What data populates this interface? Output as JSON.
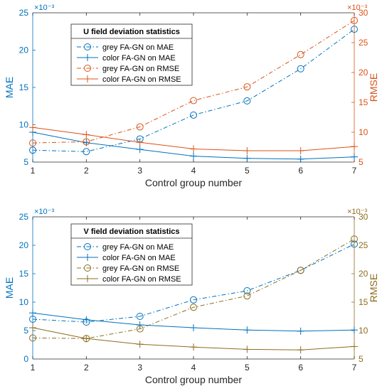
{
  "chart_data": [
    {
      "type": "line",
      "title": "",
      "legend_title": "U field deviation statistics",
      "xlabel": "Control group number",
      "ylabel_left": "MAE",
      "ylabel_right": "RMSE",
      "left_exponent": "×10⁻³",
      "right_exponent": "×10⁻³",
      "x": [
        1,
        2,
        3,
        4,
        5,
        6,
        7
      ],
      "xlim": [
        1,
        7
      ],
      "xticks": [
        "1",
        "2",
        "3",
        "4",
        "5",
        "6",
        "7"
      ],
      "ylim_left": [
        5,
        25
      ],
      "yticks_left": [
        "5",
        "10",
        "15",
        "20",
        "25"
      ],
      "ylim_right": [
        5,
        30
      ],
      "yticks_right": [
        "5",
        "10",
        "15",
        "20",
        "25",
        "30"
      ],
      "left_axis_color": "#0072bd",
      "right_axis_color": "#d95319",
      "legend_position": "upper-left",
      "series": [
        {
          "name": "grey FA-GN on MAE",
          "axis": "left",
          "style": "dashdot",
          "marker": "circle",
          "color": "#0072bd",
          "values": [
            6.6,
            6.4,
            8.1,
            11.3,
            13.2,
            17.5,
            22.8
          ]
        },
        {
          "name": "color FA-GN on MAE",
          "axis": "left",
          "style": "solid",
          "marker": "plus",
          "color": "#0072bd",
          "values": [
            9.0,
            7.6,
            6.7,
            5.8,
            5.5,
            5.4,
            5.7
          ]
        },
        {
          "name": "grey FA-GN on RMSE",
          "axis": "right",
          "style": "dashdot",
          "marker": "circle",
          "color": "#d95319",
          "values": [
            8.2,
            8.4,
            10.9,
            15.3,
            17.6,
            23.0,
            28.7
          ]
        },
        {
          "name": "color FA-GN on RMSE",
          "axis": "right",
          "style": "solid",
          "marker": "plus",
          "color": "#d95319",
          "values": [
            10.8,
            9.6,
            8.3,
            7.2,
            6.9,
            6.9,
            7.6
          ]
        }
      ]
    },
    {
      "type": "line",
      "title": "",
      "legend_title": "V field deviation statistics",
      "xlabel": "Control group number",
      "ylabel_left": "MAE",
      "ylabel_right": "RMSE",
      "left_exponent": "×10⁻³",
      "right_exponent": "×10⁻³",
      "x": [
        1,
        2,
        3,
        4,
        5,
        6,
        7
      ],
      "xlim": [
        1,
        7
      ],
      "xticks": [
        "1",
        "2",
        "3",
        "4",
        "5",
        "6",
        "7"
      ],
      "ylim_left": [
        0,
        25
      ],
      "yticks_left": [
        "0",
        "5",
        "10",
        "15",
        "20",
        "25"
      ],
      "ylim_right": [
        5,
        30
      ],
      "yticks_right": [
        "5",
        "10",
        "15",
        "20",
        "25",
        "30"
      ],
      "left_axis_color": "#0072bd",
      "right_axis_color": "#8c6d1f",
      "legend_position": "upper-left",
      "series": [
        {
          "name": "grey FA-GN on MAE",
          "axis": "left",
          "style": "dashdot",
          "marker": "circle",
          "color": "#0072bd",
          "values": [
            7.0,
            6.5,
            7.5,
            10.4,
            12.0,
            15.6,
            20.2
          ]
        },
        {
          "name": "color FA-GN on MAE",
          "axis": "left",
          "style": "solid",
          "marker": "plus",
          "color": "#0072bd",
          "values": [
            8.1,
            6.9,
            6.0,
            5.5,
            5.1,
            4.9,
            5.1
          ]
        },
        {
          "name": "grey FA-GN on RMSE",
          "axis": "right",
          "style": "dashdot",
          "marker": "circle",
          "color": "#8c6d1f",
          "values": [
            8.7,
            8.6,
            10.3,
            14.1,
            16.1,
            20.6,
            26.1
          ]
        },
        {
          "name": "color FA-GN on RMSE",
          "axis": "right",
          "style": "solid",
          "marker": "plus",
          "color": "#8c6d1f",
          "values": [
            10.5,
            8.6,
            7.6,
            7.1,
            6.7,
            6.6,
            7.2
          ]
        }
      ]
    }
  ]
}
